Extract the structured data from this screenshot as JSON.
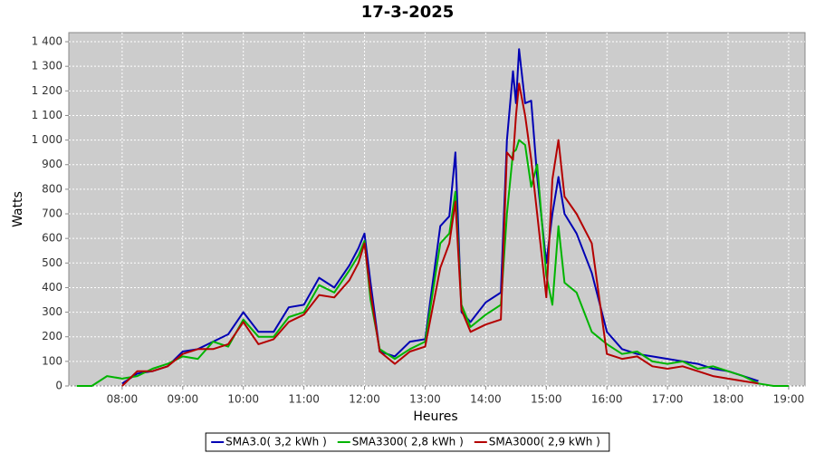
{
  "chart_data": {
    "type": "line",
    "title": "17-3-2025",
    "x_label": "Heures",
    "y_label": "Watts",
    "x": [
      7.25,
      7.5,
      7.75,
      8,
      8.25,
      8.5,
      8.75,
      9,
      9.25,
      9.5,
      9.75,
      10,
      10.25,
      10.5,
      10.75,
      11,
      11.25,
      11.5,
      11.75,
      11.9,
      12.0,
      12.1,
      12.25,
      12.5,
      12.75,
      13,
      13.25,
      13.4,
      13.5,
      13.6,
      13.75,
      14,
      14.25,
      14.35,
      14.45,
      14.5,
      14.55,
      14.65,
      14.75,
      14.85,
      15,
      15.1,
      15.2,
      15.3,
      15.5,
      15.75,
      16,
      16.25,
      16.5,
      16.75,
      17,
      17.25,
      17.5,
      17.75,
      18,
      18.25,
      18.5,
      18.75,
      19
    ],
    "series": [
      {
        "name": "SMA3.0( 3,2 kWh )",
        "color": "#0000b4",
        "values": [
          null,
          null,
          null,
          10,
          50,
          60,
          80,
          140,
          150,
          180,
          210,
          300,
          220,
          220,
          320,
          330,
          440,
          400,
          490,
          560,
          620,
          420,
          140,
          120,
          180,
          190,
          650,
          690,
          950,
          300,
          260,
          340,
          380,
          1000,
          1280,
          1150,
          1370,
          1150,
          1160,
          850,
          500,
          700,
          850,
          700,
          620,
          460,
          220,
          150,
          130,
          120,
          110,
          100,
          90,
          70,
          60,
          40,
          20,
          null,
          null
        ]
      },
      {
        "name": "SMA3300( 2,8 kWh )",
        "color": "#00b400",
        "values": [
          0,
          0,
          40,
          30,
          40,
          70,
          90,
          120,
          110,
          180,
          160,
          270,
          200,
          200,
          280,
          300,
          410,
          380,
          470,
          530,
          590,
          350,
          150,
          110,
          150,
          180,
          580,
          620,
          790,
          330,
          240,
          290,
          330,
          700,
          950,
          960,
          1000,
          980,
          810,
          900,
          450,
          330,
          650,
          420,
          380,
          220,
          170,
          130,
          140,
          100,
          90,
          100,
          70,
          80,
          60,
          40,
          10,
          0,
          0
        ]
      },
      {
        "name": "SMA3000( 2,9 kWh )",
        "color": "#b40000",
        "values": [
          null,
          null,
          null,
          0,
          60,
          60,
          80,
          130,
          150,
          150,
          170,
          260,
          170,
          190,
          260,
          290,
          370,
          360,
          430,
          500,
          580,
          380,
          140,
          90,
          140,
          160,
          480,
          580,
          750,
          310,
          220,
          250,
          270,
          950,
          920,
          1100,
          1230,
          1100,
          920,
          700,
          360,
          840,
          1000,
          770,
          700,
          580,
          130,
          110,
          120,
          80,
          70,
          80,
          60,
          40,
          30,
          20,
          10,
          null,
          null
        ]
      }
    ],
    "xlim": [
      7.12,
      19.27
    ],
    "xticks": [
      {
        "value": 8,
        "label": "08:00"
      },
      {
        "value": 9,
        "label": "09:00"
      },
      {
        "value": 10,
        "label": "10:00"
      },
      {
        "value": 11,
        "label": "11:00"
      },
      {
        "value": 12,
        "label": "12:00"
      },
      {
        "value": 13,
        "label": "13:00"
      },
      {
        "value": 14,
        "label": "14:00"
      },
      {
        "value": 15,
        "label": "15:00"
      },
      {
        "value": 16,
        "label": "16:00"
      },
      {
        "value": 17,
        "label": "17:00"
      },
      {
        "value": 18,
        "label": "18:00"
      },
      {
        "value": 19,
        "label": "19:00"
      }
    ],
    "ylim": [
      0,
      1437
    ],
    "yticks": [
      0,
      100,
      200,
      300,
      400,
      500,
      600,
      700,
      800,
      900,
      {
        "value": 1000,
        "label": "1 000"
      },
      {
        "value": 1100,
        "label": "1 100"
      },
      {
        "value": 1200,
        "label": "1 200"
      },
      {
        "value": 1300,
        "label": "1 300"
      },
      {
        "value": 1400,
        "label": "1 400"
      }
    ],
    "grid": true,
    "legend": "bottom"
  }
}
